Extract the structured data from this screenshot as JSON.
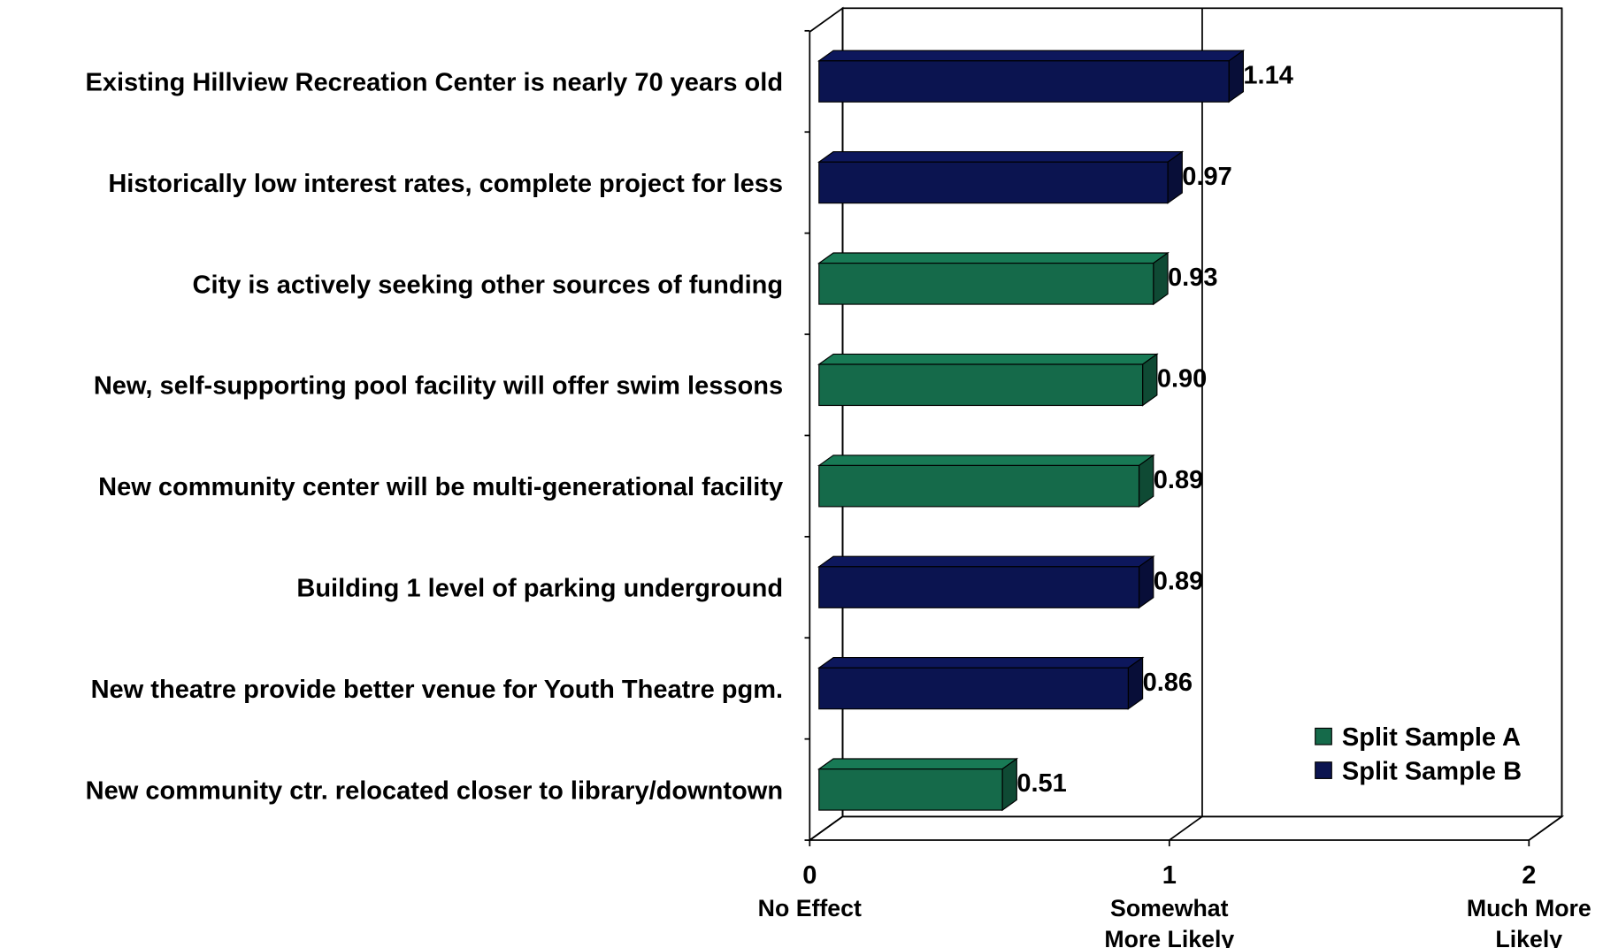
{
  "chart_data": {
    "type": "bar",
    "orientation": "horizontal",
    "categories": [
      "Existing Hillview Recreation Center is nearly 70 years old",
      "Historically low interest rates, complete project for less",
      "City is actively seeking other sources of funding",
      "New, self-supporting pool facility will offer swim lessons",
      "New community center will be multi-generational facility",
      "Building 1 level of parking underground",
      "New theatre provide better venue for Youth Theatre pgm.",
      "New community ctr. relocated closer to library/downtown"
    ],
    "series": [
      {
        "name": "Split Sample A",
        "color": "#156a4a",
        "values": [
          null,
          null,
          0.93,
          0.9,
          0.89,
          null,
          null,
          0.51
        ],
        "value_labels": [
          null,
          null,
          "0.93",
          "0.90",
          "0.89",
          null,
          null,
          "0.51"
        ]
      },
      {
        "name": "Split Sample B",
        "color": "#0b1450",
        "values": [
          1.14,
          0.97,
          null,
          null,
          null,
          0.89,
          0.86,
          null
        ],
        "value_labels": [
          "1.14",
          "0.97",
          null,
          null,
          null,
          "0.89",
          "0.86",
          null
        ]
      }
    ],
    "xlim": [
      0,
      2
    ],
    "xticks": [
      0,
      1,
      2
    ],
    "xtick_sublabels": [
      [
        "No Effect"
      ],
      [
        "Somewhat",
        "More  Likely"
      ],
      [
        "Much More",
        "Likely"
      ]
    ],
    "grid": true,
    "legend": "lower right",
    "three_d": true
  }
}
